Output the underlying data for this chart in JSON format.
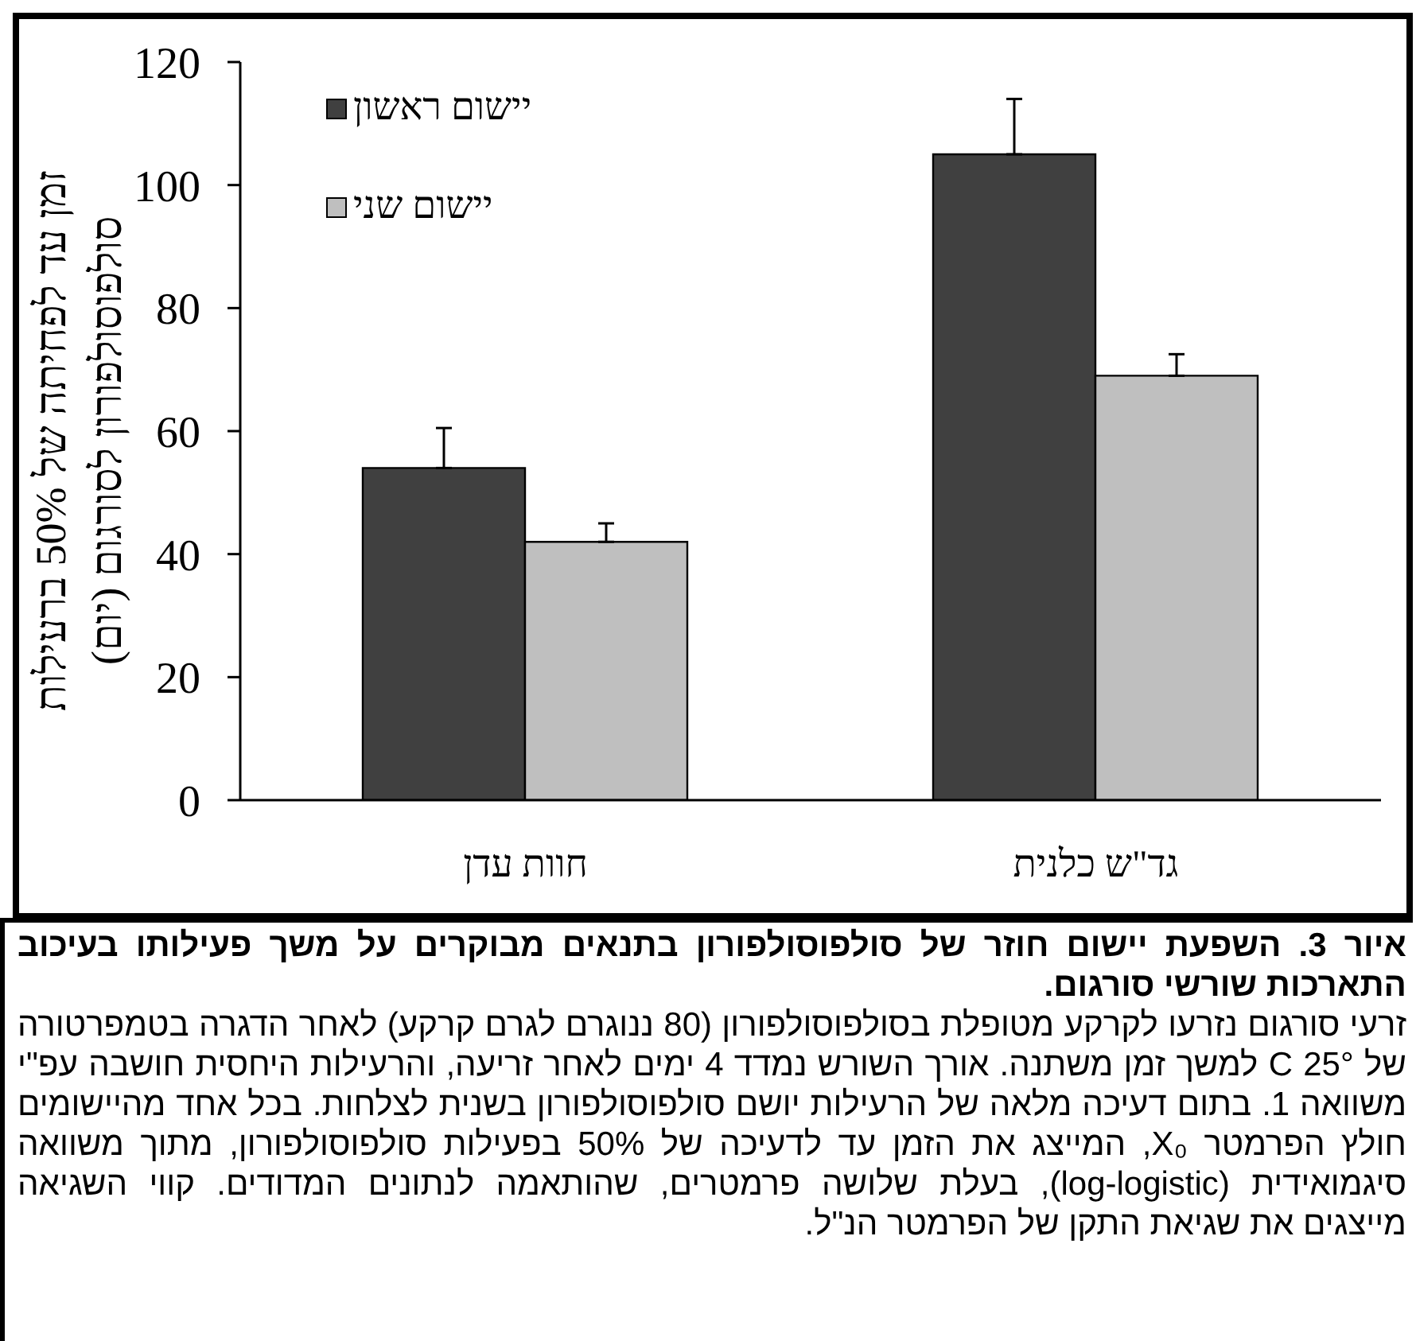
{
  "chart_data": {
    "type": "bar",
    "ylabel": "זמן עד לפחיתה של 50% ברעילות סולפוסולפורון לסורגום (יום)",
    "categories": [
      "חוות עדן",
      "גד\"ש כלנית"
    ],
    "series": [
      {
        "name": "יישום ראשון",
        "color": "#404040",
        "values": [
          54,
          105
        ],
        "errors": [
          [
            54,
            60.5
          ],
          [
            105,
            114
          ]
        ]
      },
      {
        "name": "יישום שני",
        "color": "#bfbfbf",
        "values": [
          42,
          69
        ],
        "errors": [
          [
            42,
            45
          ],
          [
            69,
            72.5
          ]
        ]
      }
    ],
    "ylim": [
      0,
      120
    ],
    "yticks": [
      0,
      20,
      40,
      60,
      80,
      100,
      120
    ],
    "legend": "top left",
    "annotations": [
      "איור 3. השפעת יישום חוזר של סולפוסולפורון בתנאים מבוקרים על משך פעילותו בעיכוב התארכות שורשי סורגום.",
      "זרעי סורגום נזרעו לקרקע מטופלת בסולפוסולפורון (80 ננוגרם לגרם קרקע) לאחר הדגרה בטמפרטורה של 25° C למשך זמן משתנה. אורך השורש נמדד 4 ימים לאחר זריעה, והרעילות היחסית חושבה עפ\"י משוואה 1. בתום דעיכה מלאה של הרעילות יושם סולפוסולפורון בשנית לצלחות. בכל אחד מהיישומים חולץ הפרמטר X₀, המייצג את הזמן עד לדעיכה של 50% בפעילות סולפוסולפורון, מתוך משוואה סיגמואידית (log-logistic), בעלת שלושה פרמטרים, שהותאמה לנתונים המדודים. קווי השגיאה מייצגים את שגיאת התקן של הפרמטר הנ\"ל."
    ]
  }
}
